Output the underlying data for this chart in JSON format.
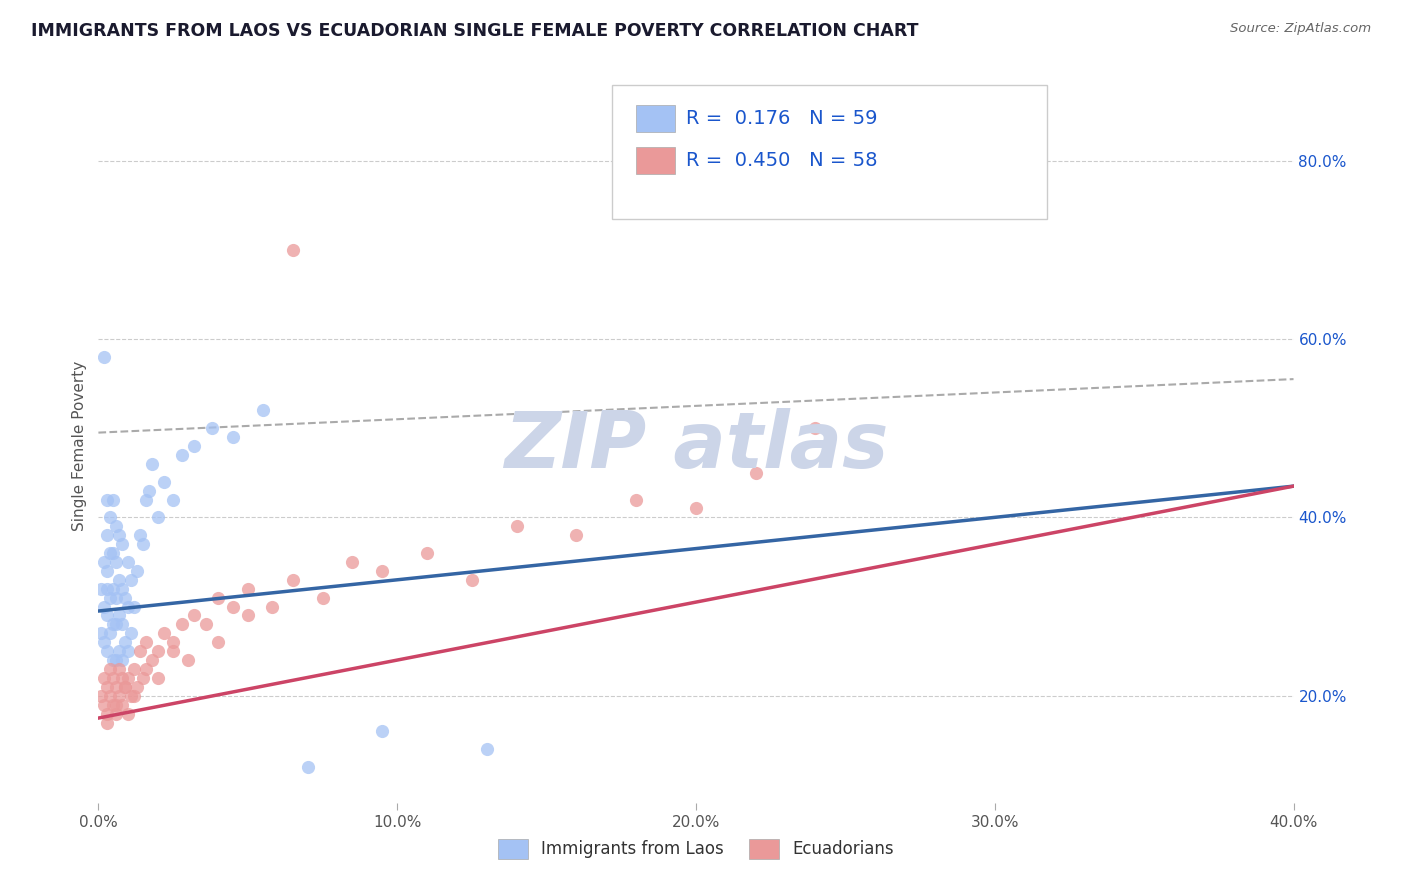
{
  "title": "IMMIGRANTS FROM LAOS VS ECUADORIAN SINGLE FEMALE POVERTY CORRELATION CHART",
  "source": "Source: ZipAtlas.com",
  "ylabel": "Single Female Poverty",
  "legend_label1": "Immigrants from Laos",
  "legend_label2": "Ecuadorians",
  "R1": 0.176,
  "N1": 59,
  "R2": 0.45,
  "N2": 58,
  "color1": "#a4c2f4",
  "color2": "#ea9999",
  "trend_color1": "#3465a4",
  "trend_color2": "#cc4466",
  "xlim": [
    0.0,
    0.4
  ],
  "ylim": [
    0.08,
    0.88
  ],
  "right_yticks": [
    0.2,
    0.4,
    0.6,
    0.8
  ],
  "right_yticklabels": [
    "20.0%",
    "40.0%",
    "60.0%",
    "80.0%"
  ],
  "xticks": [
    0.0,
    0.1,
    0.2,
    0.3,
    0.4
  ],
  "xticklabels": [
    "0.0%",
    "10.0%",
    "20.0%",
    "30.0%",
    "40.0%"
  ],
  "blue_trend_x0": 0.0,
  "blue_trend_y0": 0.295,
  "blue_trend_x1": 0.4,
  "blue_trend_y1": 0.435,
  "pink_trend_x0": 0.0,
  "pink_trend_y0": 0.175,
  "pink_trend_x1": 0.4,
  "pink_trend_y1": 0.435,
  "dash_line_x0": 0.0,
  "dash_line_y0": 0.495,
  "dash_line_x1": 0.4,
  "dash_line_y1": 0.555,
  "background_color": "#ffffff",
  "grid_color": "#cccccc",
  "watermark_color": "#ccd5e8",
  "legend_R_color": "#1a56cc",
  "blue_scatter_x": [
    0.001,
    0.001,
    0.002,
    0.002,
    0.002,
    0.002,
    0.003,
    0.003,
    0.003,
    0.003,
    0.003,
    0.003,
    0.004,
    0.004,
    0.004,
    0.004,
    0.005,
    0.005,
    0.005,
    0.005,
    0.005,
    0.006,
    0.006,
    0.006,
    0.006,
    0.006,
    0.007,
    0.007,
    0.007,
    0.007,
    0.008,
    0.008,
    0.008,
    0.008,
    0.009,
    0.009,
    0.01,
    0.01,
    0.01,
    0.011,
    0.011,
    0.012,
    0.013,
    0.014,
    0.015,
    0.016,
    0.017,
    0.018,
    0.02,
    0.022,
    0.025,
    0.028,
    0.032,
    0.038,
    0.045,
    0.055,
    0.07,
    0.095,
    0.13
  ],
  "blue_scatter_y": [
    0.27,
    0.32,
    0.26,
    0.3,
    0.35,
    0.58,
    0.25,
    0.29,
    0.32,
    0.34,
    0.38,
    0.42,
    0.27,
    0.31,
    0.36,
    0.4,
    0.24,
    0.28,
    0.32,
    0.36,
    0.42,
    0.24,
    0.28,
    0.31,
    0.35,
    0.39,
    0.25,
    0.29,
    0.33,
    0.38,
    0.24,
    0.28,
    0.32,
    0.37,
    0.26,
    0.31,
    0.25,
    0.3,
    0.35,
    0.27,
    0.33,
    0.3,
    0.34,
    0.38,
    0.37,
    0.42,
    0.43,
    0.46,
    0.4,
    0.44,
    0.42,
    0.47,
    0.48,
    0.5,
    0.49,
    0.52,
    0.12,
    0.16,
    0.14
  ],
  "pink_scatter_x": [
    0.001,
    0.002,
    0.002,
    0.003,
    0.003,
    0.004,
    0.004,
    0.005,
    0.005,
    0.006,
    0.006,
    0.007,
    0.007,
    0.008,
    0.008,
    0.009,
    0.01,
    0.01,
    0.011,
    0.012,
    0.013,
    0.014,
    0.015,
    0.016,
    0.018,
    0.02,
    0.022,
    0.025,
    0.028,
    0.032,
    0.036,
    0.04,
    0.045,
    0.05,
    0.058,
    0.065,
    0.075,
    0.085,
    0.095,
    0.11,
    0.125,
    0.14,
    0.16,
    0.18,
    0.2,
    0.22,
    0.24,
    0.003,
    0.006,
    0.009,
    0.012,
    0.016,
    0.02,
    0.025,
    0.03,
    0.04,
    0.05,
    0.065
  ],
  "pink_scatter_y": [
    0.2,
    0.19,
    0.22,
    0.18,
    0.21,
    0.2,
    0.23,
    0.19,
    0.22,
    0.18,
    0.21,
    0.2,
    0.23,
    0.19,
    0.22,
    0.21,
    0.18,
    0.22,
    0.2,
    0.23,
    0.21,
    0.25,
    0.22,
    0.26,
    0.24,
    0.25,
    0.27,
    0.26,
    0.28,
    0.29,
    0.28,
    0.31,
    0.3,
    0.32,
    0.3,
    0.33,
    0.31,
    0.35,
    0.34,
    0.36,
    0.33,
    0.39,
    0.38,
    0.42,
    0.41,
    0.45,
    0.5,
    0.17,
    0.19,
    0.21,
    0.2,
    0.23,
    0.22,
    0.25,
    0.24,
    0.26,
    0.29,
    0.7
  ]
}
